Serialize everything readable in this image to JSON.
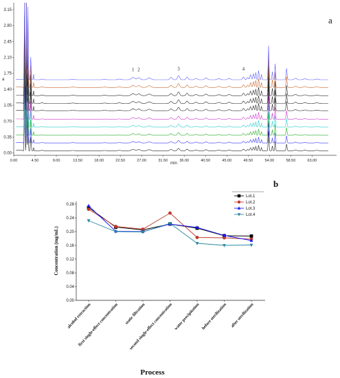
{
  "chart_data": [
    {
      "type": "line",
      "panel_label": "a",
      "xlabel": "min",
      "ylabel": "a",
      "xlim": [
        0,
        67
      ],
      "ylim": [
        -0.05,
        3.3
      ],
      "x_ticks": [
        "0.00",
        "4.50",
        "9.00",
        "13.50",
        "18.00",
        "22.50",
        "27.00",
        "31.50",
        "36.00",
        "40.50",
        "45.00",
        "49.50",
        "54.00",
        "58.50",
        "63.00"
      ],
      "x_tick_values": [
        0,
        4.5,
        9,
        13.5,
        18,
        22.5,
        27,
        31.5,
        36,
        40.5,
        45,
        49.5,
        54,
        58.5,
        63
      ],
      "y_ticks": [
        "0.00",
        "0.35",
        "0.70",
        "1.05",
        "1.40",
        "1.75",
        "2.10",
        "2.45",
        "2.80",
        "3.15"
      ],
      "y_tick_values": [
        0,
        0.35,
        0.7,
        1.05,
        1.4,
        1.75,
        2.1,
        2.45,
        2.8,
        3.15
      ],
      "peak_labels": [
        {
          "label": "1",
          "x": 25.2,
          "y": 1.78
        },
        {
          "label": "2",
          "x": 26.4,
          "y": 1.78
        },
        {
          "label": "3",
          "x": 34.8,
          "y": 1.8
        },
        {
          "label": "4",
          "x": 48.5,
          "y": 1.8
        }
      ],
      "trace_baselines": [
        1.61,
        1.44,
        1.26,
        1.09,
        0.93,
        0.74,
        0.57,
        0.39,
        0.22,
        0.05
      ],
      "trace_colors": [
        "#5a5aff",
        "#c86428",
        "#222222",
        "#222222",
        "#222222",
        "#cc33cc",
        "#22cccc",
        "#22aa22",
        "#3333ff",
        "#222222"
      ]
    },
    {
      "type": "line",
      "panel_label": "b",
      "xlabel": "Process",
      "ylabel": "Concentration (mg/mL)",
      "ylim": [
        0,
        0.28
      ],
      "y_ticks": [
        "0.00",
        "0.04",
        "0.08",
        "0.12",
        "0.16",
        "0.20",
        "0.24",
        "0.28"
      ],
      "y_tick_values": [
        0,
        0.04,
        0.08,
        0.12,
        0.16,
        0.2,
        0.24,
        0.28
      ],
      "categories": [
        "alcohol extraction",
        "first single-effect concentration",
        "static filtration",
        "second single-effect concentration",
        "water precipitation",
        "before sterilization",
        "after sterilization"
      ],
      "series": [
        {
          "name": "Lot.1",
          "color": "#000000",
          "marker": "square",
          "values": [
            0.27,
            0.213,
            0.205,
            0.222,
            0.21,
            0.188,
            0.187
          ]
        },
        {
          "name": "Lot.2",
          "color": "#c0392b",
          "marker": "circle",
          "values": [
            0.265,
            0.215,
            0.207,
            0.254,
            0.183,
            0.182,
            0.178
          ]
        },
        {
          "name": "Lot.3",
          "color": "#1a1aff",
          "marker": "triangle-up",
          "values": [
            0.275,
            0.201,
            0.2,
            0.222,
            0.212,
            0.189,
            0.174
          ]
        },
        {
          "name": "Lot.4",
          "color": "#2a8aa0",
          "marker": "triangle-down",
          "values": [
            0.232,
            0.2,
            0.199,
            0.224,
            0.166,
            0.16,
            0.161
          ]
        }
      ],
      "legend_position": "top-right"
    }
  ]
}
